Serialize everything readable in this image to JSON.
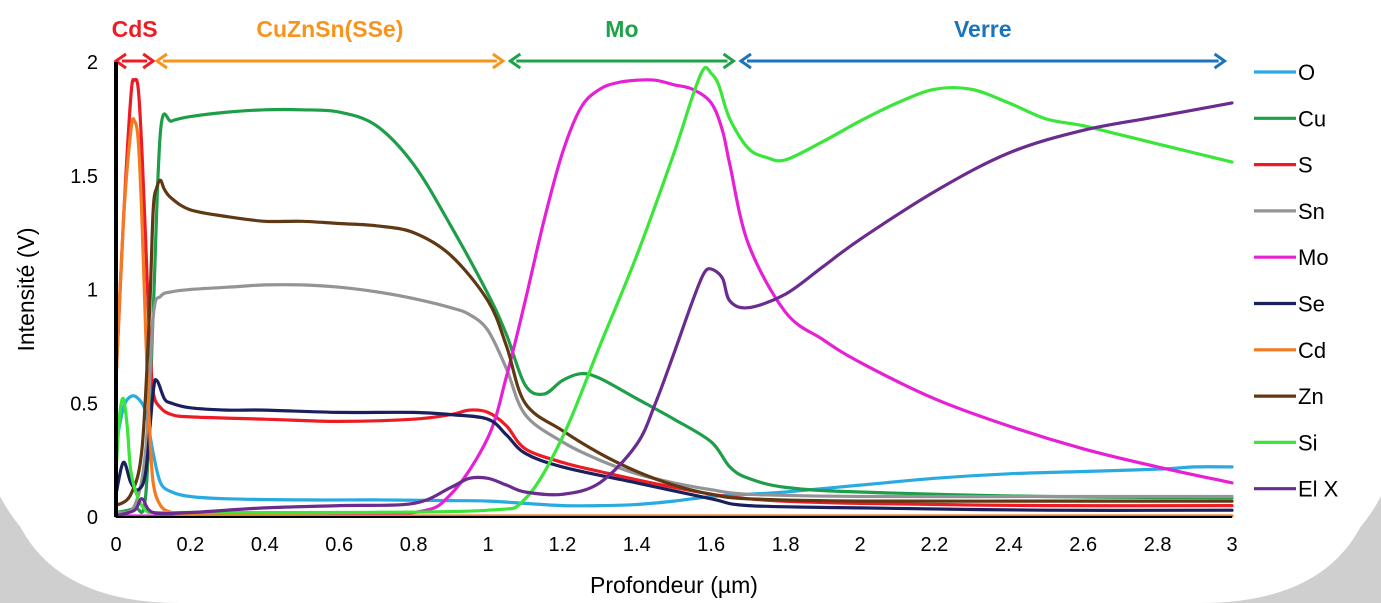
{
  "chart_data": {
    "type": "line",
    "xlabel": "Profondeur (µm)",
    "ylabel": "Intensité (V)",
    "xlim": [
      0,
      3
    ],
    "ylim": [
      0,
      2
    ],
    "xticks": [
      0,
      0.2,
      0.4,
      0.6,
      0.8,
      1,
      1.2,
      1.4,
      1.6,
      1.8,
      2,
      2.2,
      2.4,
      2.6,
      2.8,
      3
    ],
    "xtick_labels": [
      "0",
      "0.2",
      "0.4",
      "0.6",
      "0.8",
      "1",
      "1.2",
      "1.4",
      "1.6",
      "1.8",
      "2",
      "2.2",
      "2.4",
      "2.6",
      "2.8",
      "3"
    ],
    "yticks": [
      0,
      0.5,
      1,
      1.5,
      2
    ],
    "ytick_labels": [
      "0",
      "0.5",
      "1",
      "1.5",
      "2"
    ],
    "grid": false,
    "legend_position": "right",
    "regions": [
      {
        "label": "CdS",
        "start": 0.0,
        "end": 0.1,
        "color": "#ee1c25"
      },
      {
        "label": "CuZnSn(SSe)",
        "start": 0.11,
        "end": 1.04,
        "color": "#f7941d"
      },
      {
        "label": "Mo",
        "start": 1.06,
        "end": 1.66,
        "color": "#1fa24a"
      },
      {
        "label": "Verre",
        "start": 1.68,
        "end": 2.98,
        "color": "#1b75bc"
      }
    ],
    "series": [
      {
        "name": "O",
        "color": "#29abe2",
        "x": [
          0,
          0.02,
          0.04,
          0.06,
          0.08,
          0.1,
          0.12,
          0.15,
          0.2,
          0.3,
          0.5,
          0.7,
          0.9,
          1.0,
          1.1,
          1.2,
          1.3,
          1.4,
          1.5,
          1.6,
          1.7,
          1.8,
          2.0,
          2.2,
          2.4,
          2.6,
          2.8,
          2.9,
          3.0
        ],
        "y": [
          0.32,
          0.48,
          0.53,
          0.52,
          0.46,
          0.28,
          0.15,
          0.11,
          0.09,
          0.08,
          0.075,
          0.075,
          0.072,
          0.07,
          0.06,
          0.05,
          0.05,
          0.055,
          0.07,
          0.09,
          0.1,
          0.11,
          0.14,
          0.17,
          0.19,
          0.2,
          0.21,
          0.22,
          0.22
        ]
      },
      {
        "name": "Cu",
        "color": "#1e9e48",
        "x": [
          0,
          0.05,
          0.08,
          0.1,
          0.12,
          0.15,
          0.2,
          0.3,
          0.4,
          0.5,
          0.6,
          0.7,
          0.8,
          0.9,
          1.0,
          1.05,
          1.1,
          1.15,
          1.2,
          1.25,
          1.3,
          1.4,
          1.5,
          1.6,
          1.65,
          1.7,
          1.8,
          2.0,
          2.5,
          3.0
        ],
        "y": [
          0.02,
          0.04,
          0.1,
          0.9,
          1.7,
          1.74,
          1.76,
          1.78,
          1.79,
          1.79,
          1.78,
          1.72,
          1.55,
          1.28,
          0.98,
          0.8,
          0.58,
          0.54,
          0.6,
          0.63,
          0.61,
          0.52,
          0.43,
          0.33,
          0.22,
          0.17,
          0.13,
          0.11,
          0.09,
          0.085
        ]
      },
      {
        "name": "S",
        "color": "#ed1c24",
        "x": [
          0,
          0.02,
          0.04,
          0.05,
          0.06,
          0.07,
          0.08,
          0.09,
          0.1,
          0.12,
          0.15,
          0.2,
          0.4,
          0.6,
          0.8,
          0.9,
          0.95,
          1.0,
          1.05,
          1.1,
          1.2,
          1.3,
          1.5,
          1.7,
          2.0,
          2.5,
          3.0
        ],
        "y": [
          0.6,
          1.3,
          1.85,
          1.92,
          1.88,
          1.6,
          1.2,
          0.8,
          0.55,
          0.48,
          0.45,
          0.44,
          0.43,
          0.42,
          0.43,
          0.45,
          0.47,
          0.46,
          0.4,
          0.3,
          0.24,
          0.2,
          0.13,
          0.08,
          0.06,
          0.05,
          0.05
        ]
      },
      {
        "name": "Sn",
        "color": "#929497",
        "x": [
          0,
          0.05,
          0.08,
          0.1,
          0.12,
          0.15,
          0.2,
          0.3,
          0.4,
          0.5,
          0.6,
          0.7,
          0.8,
          0.9,
          0.95,
          1.0,
          1.05,
          1.1,
          1.2,
          1.3,
          1.4,
          1.5,
          1.6,
          1.7,
          2.0,
          2.5,
          3.0
        ],
        "y": [
          0.02,
          0.05,
          0.3,
          0.88,
          0.97,
          0.99,
          1.0,
          1.01,
          1.02,
          1.02,
          1.01,
          0.99,
          0.96,
          0.92,
          0.89,
          0.82,
          0.65,
          0.45,
          0.33,
          0.25,
          0.19,
          0.15,
          0.12,
          0.1,
          0.09,
          0.09,
          0.09
        ]
      },
      {
        "name": "Mo",
        "color": "#e620d4",
        "x": [
          0,
          0.5,
          0.8,
          0.9,
          1.0,
          1.05,
          1.1,
          1.15,
          1.2,
          1.25,
          1.3,
          1.35,
          1.4,
          1.45,
          1.5,
          1.55,
          1.6,
          1.63,
          1.65,
          1.7,
          1.8,
          1.9,
          2.0,
          2.2,
          2.4,
          2.6,
          2.8,
          3.0
        ],
        "y": [
          0.0,
          0.005,
          0.02,
          0.1,
          0.35,
          0.62,
          0.95,
          1.3,
          1.6,
          1.8,
          1.88,
          1.91,
          1.92,
          1.92,
          1.9,
          1.88,
          1.82,
          1.7,
          1.55,
          1.2,
          0.9,
          0.78,
          0.68,
          0.52,
          0.4,
          0.3,
          0.22,
          0.15
        ]
      },
      {
        "name": "Se",
        "color": "#1a1f5e",
        "x": [
          0,
          0.02,
          0.04,
          0.06,
          0.08,
          0.1,
          0.11,
          0.13,
          0.15,
          0.2,
          0.3,
          0.4,
          0.6,
          0.8,
          0.9,
          1.0,
          1.05,
          1.1,
          1.2,
          1.4,
          1.6,
          1.7,
          2.0,
          2.5,
          3.0
        ],
        "y": [
          0.1,
          0.24,
          0.15,
          0.12,
          0.2,
          0.55,
          0.6,
          0.52,
          0.5,
          0.48,
          0.47,
          0.47,
          0.46,
          0.46,
          0.45,
          0.43,
          0.36,
          0.28,
          0.22,
          0.15,
          0.08,
          0.05,
          0.04,
          0.03,
          0.03
        ]
      },
      {
        "name": "Cd",
        "color": "#f47920",
        "x": [
          0,
          0.02,
          0.04,
          0.05,
          0.06,
          0.07,
          0.08,
          0.09,
          0.1,
          0.12,
          0.15,
          0.2,
          0.5,
          1.0,
          2.0,
          3.0
        ],
        "y": [
          0.6,
          1.3,
          1.7,
          1.74,
          1.65,
          1.3,
          0.8,
          0.4,
          0.15,
          0.05,
          0.02,
          0.01,
          0.005,
          0.003,
          0.002,
          0.002
        ]
      },
      {
        "name": "Zn",
        "color": "#603813",
        "x": [
          0,
          0.04,
          0.07,
          0.09,
          0.1,
          0.11,
          0.12,
          0.13,
          0.15,
          0.2,
          0.3,
          0.4,
          0.5,
          0.6,
          0.7,
          0.8,
          0.9,
          1.0,
          1.05,
          1.1,
          1.2,
          1.3,
          1.4,
          1.5,
          1.6,
          1.7,
          2.0,
          2.5,
          3.0
        ],
        "y": [
          0.05,
          0.1,
          0.3,
          0.9,
          1.35,
          1.45,
          1.48,
          1.44,
          1.4,
          1.35,
          1.32,
          1.3,
          1.3,
          1.29,
          1.28,
          1.25,
          1.15,
          0.95,
          0.75,
          0.5,
          0.38,
          0.28,
          0.2,
          0.14,
          0.1,
          0.08,
          0.07,
          0.07,
          0.07
        ]
      },
      {
        "name": "Si",
        "color": "#39e639",
        "x": [
          0,
          0.01,
          0.02,
          0.03,
          0.04,
          0.06,
          0.08,
          0.1,
          0.2,
          0.6,
          1.0,
          1.1,
          1.2,
          1.3,
          1.4,
          1.5,
          1.55,
          1.58,
          1.6,
          1.62,
          1.65,
          1.7,
          1.75,
          1.8,
          1.9,
          2.0,
          2.1,
          2.2,
          2.3,
          2.4,
          2.5,
          2.6,
          2.7,
          2.8,
          2.9,
          3.0
        ],
        "y": [
          0.2,
          0.45,
          0.52,
          0.4,
          0.2,
          0.08,
          0.03,
          0.02,
          0.02,
          0.02,
          0.03,
          0.08,
          0.35,
          0.75,
          1.15,
          1.6,
          1.85,
          1.97,
          1.95,
          1.9,
          1.75,
          1.62,
          1.58,
          1.57,
          1.65,
          1.74,
          1.82,
          1.88,
          1.88,
          1.82,
          1.75,
          1.72,
          1.68,
          1.64,
          1.6,
          1.56
        ]
      },
      {
        "name": "El X",
        "color": "#6a2c8f",
        "x": [
          0,
          0.05,
          0.07,
          0.1,
          0.2,
          0.4,
          0.6,
          0.8,
          0.9,
          0.95,
          1.0,
          1.05,
          1.1,
          1.2,
          1.3,
          1.4,
          1.45,
          1.5,
          1.55,
          1.58,
          1.6,
          1.63,
          1.65,
          1.7,
          1.8,
          1.9,
          2.0,
          2.2,
          2.4,
          2.6,
          2.8,
          3.0
        ],
        "y": [
          0.0,
          0.03,
          0.08,
          0.02,
          0.02,
          0.04,
          0.05,
          0.06,
          0.13,
          0.17,
          0.17,
          0.14,
          0.11,
          0.1,
          0.15,
          0.32,
          0.5,
          0.72,
          0.95,
          1.07,
          1.09,
          1.05,
          0.95,
          0.92,
          0.98,
          1.1,
          1.22,
          1.43,
          1.6,
          1.7,
          1.76,
          1.82
        ]
      }
    ]
  }
}
